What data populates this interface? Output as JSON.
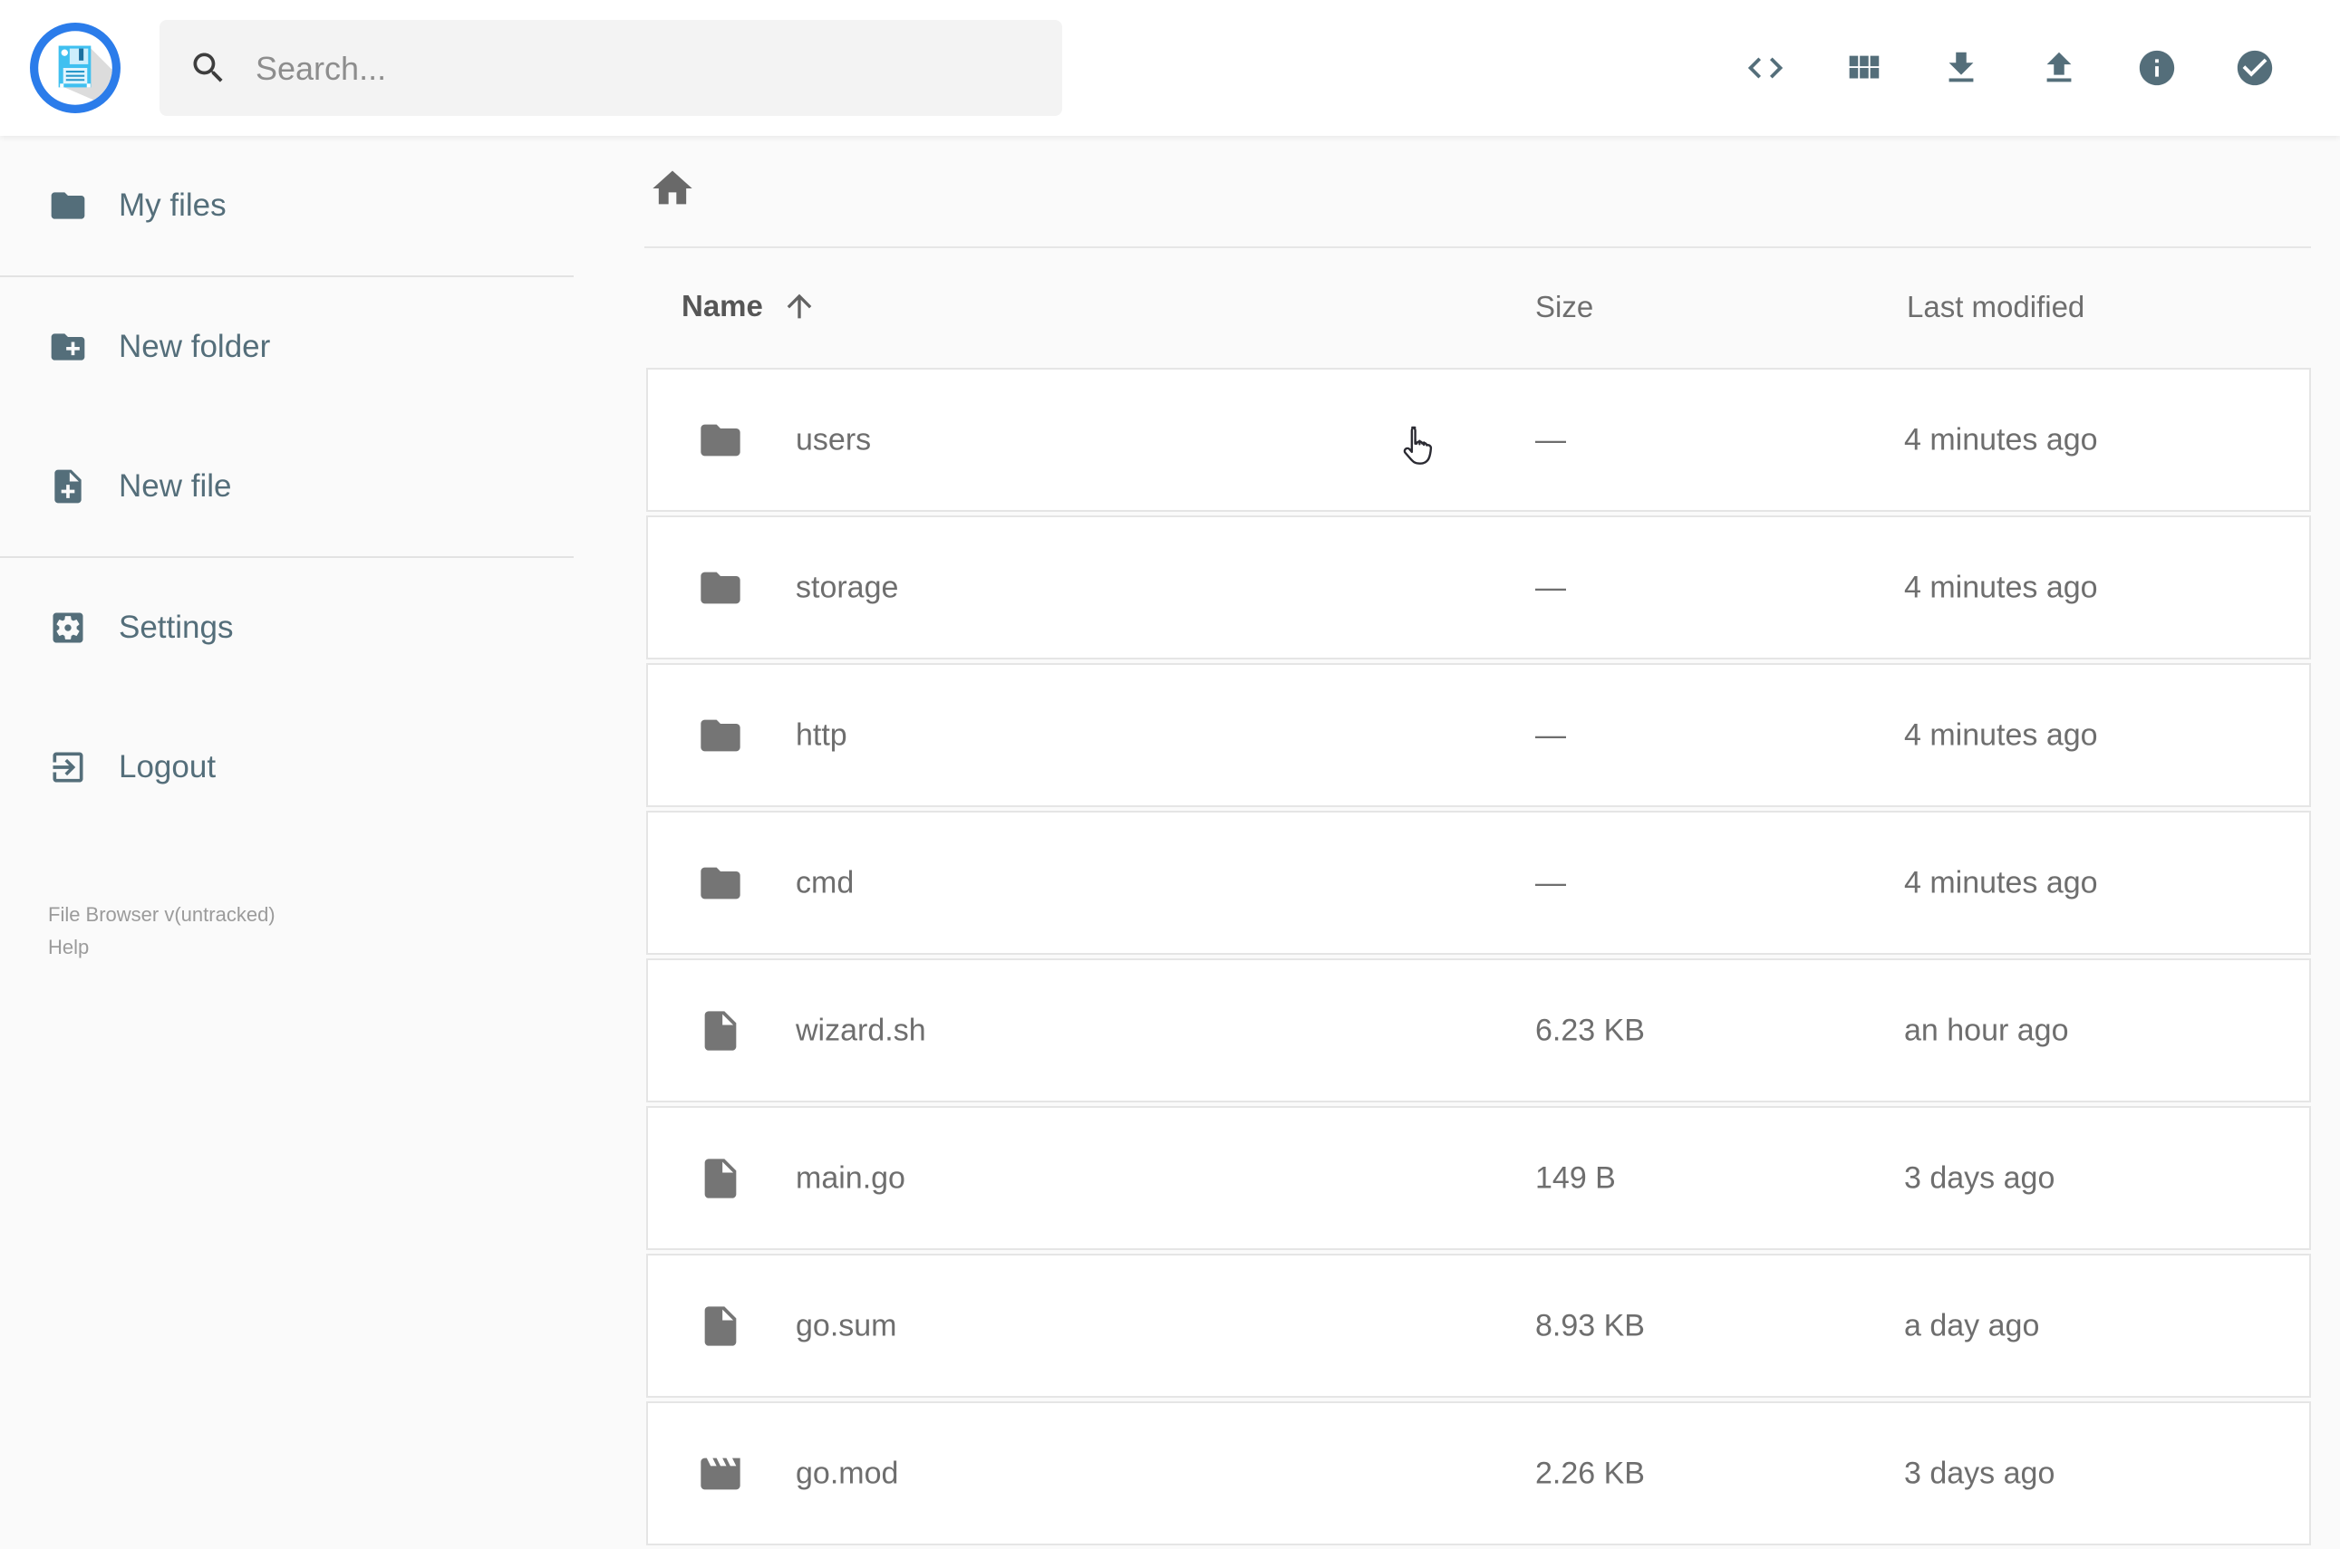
{
  "header": {
    "search": {
      "placeholder": "Search..."
    },
    "actions": [
      {
        "icon": "code",
        "name": "code-view-button"
      },
      {
        "icon": "grid",
        "name": "grid-view-button"
      },
      {
        "icon": "download",
        "name": "download-button"
      },
      {
        "icon": "upload",
        "name": "upload-button"
      },
      {
        "icon": "info",
        "name": "info-button"
      },
      {
        "icon": "check-circle",
        "name": "select-button"
      }
    ]
  },
  "sidebar": {
    "items": [
      {
        "label": "My files",
        "icon": "folder"
      },
      {
        "label": "New folder",
        "icon": "create-new-folder"
      },
      {
        "label": "New file",
        "icon": "note-add"
      },
      {
        "label": "Settings",
        "icon": "settings"
      },
      {
        "label": "Logout",
        "icon": "exit"
      }
    ],
    "footer": {
      "version": "File Browser v(untracked)",
      "help": "Help"
    }
  },
  "listing": {
    "columns": {
      "name": "Name",
      "size": "Size",
      "modified": "Last modified"
    },
    "sort": {
      "column": "Name",
      "direction": "asc"
    },
    "items": [
      {
        "name": "users",
        "icon": "folder",
        "size": "—",
        "modified": "4 minutes ago"
      },
      {
        "name": "storage",
        "icon": "folder",
        "size": "—",
        "modified": "4 minutes ago"
      },
      {
        "name": "http",
        "icon": "folder",
        "size": "—",
        "modified": "4 minutes ago"
      },
      {
        "name": "cmd",
        "icon": "folder",
        "size": "—",
        "modified": "4 minutes ago"
      },
      {
        "name": "wizard.sh",
        "icon": "file",
        "size": "6.23 KB",
        "modified": "an hour ago"
      },
      {
        "name": "main.go",
        "icon": "file",
        "size": "149 B",
        "modified": "3 days ago"
      },
      {
        "name": "go.sum",
        "icon": "file",
        "size": "8.93 KB",
        "modified": "a day ago"
      },
      {
        "name": "go.mod",
        "icon": "movie",
        "size": "2.26 KB",
        "modified": "3 days ago"
      }
    ]
  },
  "colors": {
    "accent_slate": "#546e7a",
    "brand_blue": "#2b7cea",
    "body_background": "#fafafa",
    "topbar_background": "#ffffff"
  }
}
